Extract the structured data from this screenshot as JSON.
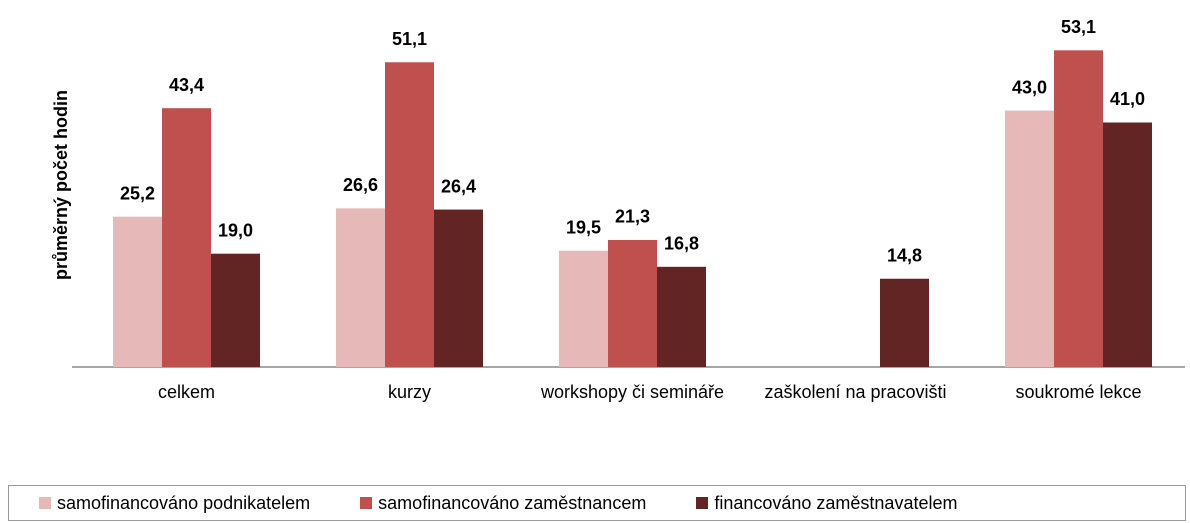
{
  "chart_data": {
    "type": "bar",
    "y_label": "průměrný počet hodin",
    "categories": [
      "celkem",
      "kurzy",
      "workshopy či semináře",
      "zaškolení na pracovišti",
      "soukromé lekce"
    ],
    "series": [
      {
        "name": "samofinancováno podnikatelem",
        "color": "#e6b8b7",
        "values": [
          25.2,
          26.6,
          19.5,
          null,
          43.0
        ],
        "value_labels": [
          "25,2",
          "26,6",
          "19,5",
          null,
          "43,0"
        ]
      },
      {
        "name": "samofinancováno zaměstnancem",
        "color": "#c0504d",
        "values": [
          43.4,
          51.1,
          21.3,
          null,
          53.1
        ],
        "value_labels": [
          "43,4",
          "51,1",
          "21,3",
          null,
          "53,1"
        ]
      },
      {
        "name": "financováno zaměstnavatelem",
        "color": "#632523",
        "values": [
          19.0,
          26.4,
          16.8,
          14.8,
          41.0
        ],
        "value_labels": [
          "19,0",
          "26,4",
          "16,8",
          "14,8",
          "41,0"
        ]
      }
    ],
    "ylim": [
      0,
      55
    ],
    "legend": "bottom"
  }
}
